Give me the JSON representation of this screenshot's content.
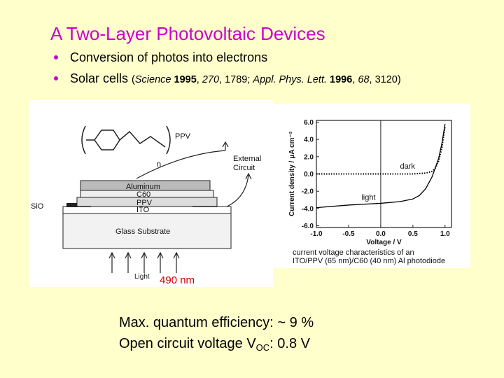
{
  "header": {
    "title": "A Two-Layer Photovoltaic Devices"
  },
  "bullets": [
    {
      "text": "Conversion of photos into electrons"
    },
    {
      "text": "Solar cells",
      "citation": [
        "(",
        "Science",
        "1995",
        ", ",
        "270",
        ", 1789; ",
        "Appl. Phys. Lett.",
        "1996",
        ", ",
        "68",
        ", 3120)"
      ]
    }
  ],
  "diagram": {
    "polymer": "PPV",
    "repeat": "n",
    "circuit": [
      "External",
      "Circuit"
    ],
    "layers": {
      "aluminum": "Aluminum",
      "c60": "C60",
      "ppv": "PPV",
      "ito": "ITO",
      "sio": "SiO",
      "glass": "Glass Substrate"
    },
    "light": "Light",
    "wavelength": "490 nm"
  },
  "plot": {
    "type": "line",
    "ylabel": "Current density / μA cm⁻²",
    "xlabel": "Voltage / V",
    "caption": [
      "current voltage characteristics of an",
      "ITO/PPV (65 nm)/C60 (40 nm) Al photodiode"
    ],
    "xlim": [
      -1.0,
      1.1
    ],
    "ylim": [
      -6.2,
      6.2
    ],
    "xticks": [
      {
        "value": -1.0,
        "label": "-1.0"
      },
      {
        "value": -0.5,
        "label": "-0.5"
      },
      {
        "value": 0,
        "label": "0.0"
      },
      0.5,
      {
        "value": 1.0,
        "label": "1.0"
      }
    ],
    "yticks": [
      {
        "value": 6,
        "label": "6.0"
      },
      {
        "value": 4,
        "label": "4.0"
      },
      {
        "value": 2,
        "label": "2.0"
      },
      {
        "value": 0,
        "label": "0.0"
      },
      {
        "value": -2,
        "label": "-2.0"
      },
      {
        "value": -4,
        "label": "-4.0"
      },
      {
        "value": -6,
        "label": "-6.0"
      }
    ],
    "series": [
      {
        "name": "dark",
        "color": "#000000",
        "dashed": true,
        "x": [
          -1.0,
          -0.5,
          0,
          0.5,
          0.7,
          0.8,
          0.85,
          0.9,
          0.95,
          1.0
        ],
        "values": [
          0,
          0,
          0,
          0,
          0.1,
          0.3,
          0.7,
          1.5,
          3.0,
          5.5
        ]
      },
      {
        "name": "light",
        "color": "#000000",
        "dashed": false,
        "x": [
          -1.0,
          -0.5,
          0,
          0.3,
          0.5,
          0.6,
          0.7,
          0.8,
          0.9,
          0.95,
          1.0
        ],
        "values": [
          -3.9,
          -3.6,
          -3.4,
          -3.2,
          -2.9,
          -2.5,
          -1.7,
          -0.3,
          1.8,
          3.5,
          5.8
        ]
      }
    ]
  },
  "results": {
    "efficiency": "Max. quantum efficiency: ~ 9 %",
    "voc": [
      "Open circuit voltage V",
      "OC",
      ": 0.8 V"
    ]
  }
}
